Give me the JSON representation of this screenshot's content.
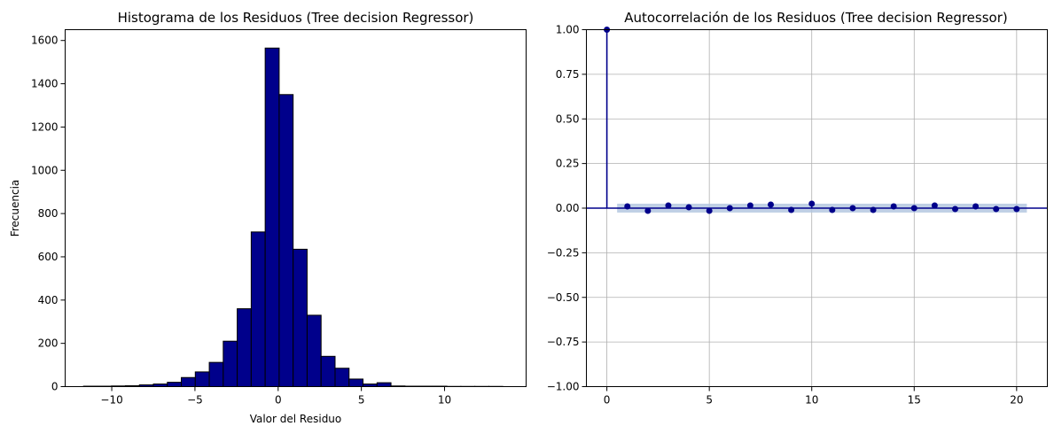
{
  "figure": {
    "background": "#ffffff"
  },
  "chart_data": [
    {
      "type": "bar",
      "subtype": "histogram",
      "title": "Histograma de los Residuos (Tree decision Regressor)",
      "xlabel": "Valor del Residuo",
      "ylabel": "Frecuencia",
      "xlim": [
        -12.8,
        14.9
      ],
      "ylim": [
        0,
        1650
      ],
      "xticks": [
        -10,
        -5,
        0,
        5,
        10
      ],
      "yticks": [
        0,
        200,
        400,
        600,
        800,
        1000,
        1200,
        1400,
        1600
      ],
      "bin_edges": [
        -11.7,
        -10.86,
        -10.02,
        -9.18,
        -8.34,
        -7.5,
        -6.66,
        -5.82,
        -4.98,
        -4.14,
        -3.3,
        -2.46,
        -1.62,
        -0.78,
        0.06,
        0.9,
        1.74,
        2.58,
        3.42,
        4.26,
        5.1,
        5.94,
        6.78,
        7.62,
        8.46,
        9.3,
        10.14,
        10.98,
        11.82,
        12.66,
        13.5
      ],
      "counts": [
        2,
        2,
        3,
        4,
        8,
        12,
        20,
        42,
        68,
        112,
        210,
        360,
        715,
        1565,
        1350,
        635,
        330,
        140,
        85,
        35,
        12,
        18,
        3,
        2,
        2,
        2,
        1,
        1,
        1,
        1
      ],
      "bar_color": "#00008b",
      "edge_color": "#000000",
      "grid": false
    },
    {
      "type": "scatter",
      "subtype": "autocorrelation-stem",
      "title": "Autocorrelación de los Residuos (Tree decision Regressor)",
      "xlabel": "",
      "ylabel": "",
      "xlim": [
        -1,
        21.5
      ],
      "ylim": [
        -1.0,
        1.0
      ],
      "xticks": [
        0,
        5,
        10,
        15,
        20
      ],
      "yticks": [
        "1.00",
        "0.75",
        "0.50",
        "0.25",
        "0.00",
        "-0.25",
        "-0.50",
        "-0.75",
        "-1.00"
      ],
      "lags": [
        0,
        1,
        2,
        3,
        4,
        5,
        6,
        7,
        8,
        9,
        10,
        11,
        12,
        13,
        14,
        15,
        16,
        17,
        18,
        19,
        20
      ],
      "acf": [
        1.0,
        0.01,
        -0.015,
        0.015,
        0.005,
        -0.015,
        0.0,
        0.015,
        0.02,
        -0.01,
        0.025,
        -0.01,
        0.0,
        -0.01,
        0.01,
        0.0,
        0.015,
        -0.005,
        0.01,
        -0.005,
        -0.005
      ],
      "confidence_band": {
        "x": [
          0.5,
          20.5
        ],
        "y": [
          -0.025,
          0.025
        ]
      },
      "marker_color": "#00008b",
      "band_color": "#b0c4de",
      "grid": true
    }
  ]
}
